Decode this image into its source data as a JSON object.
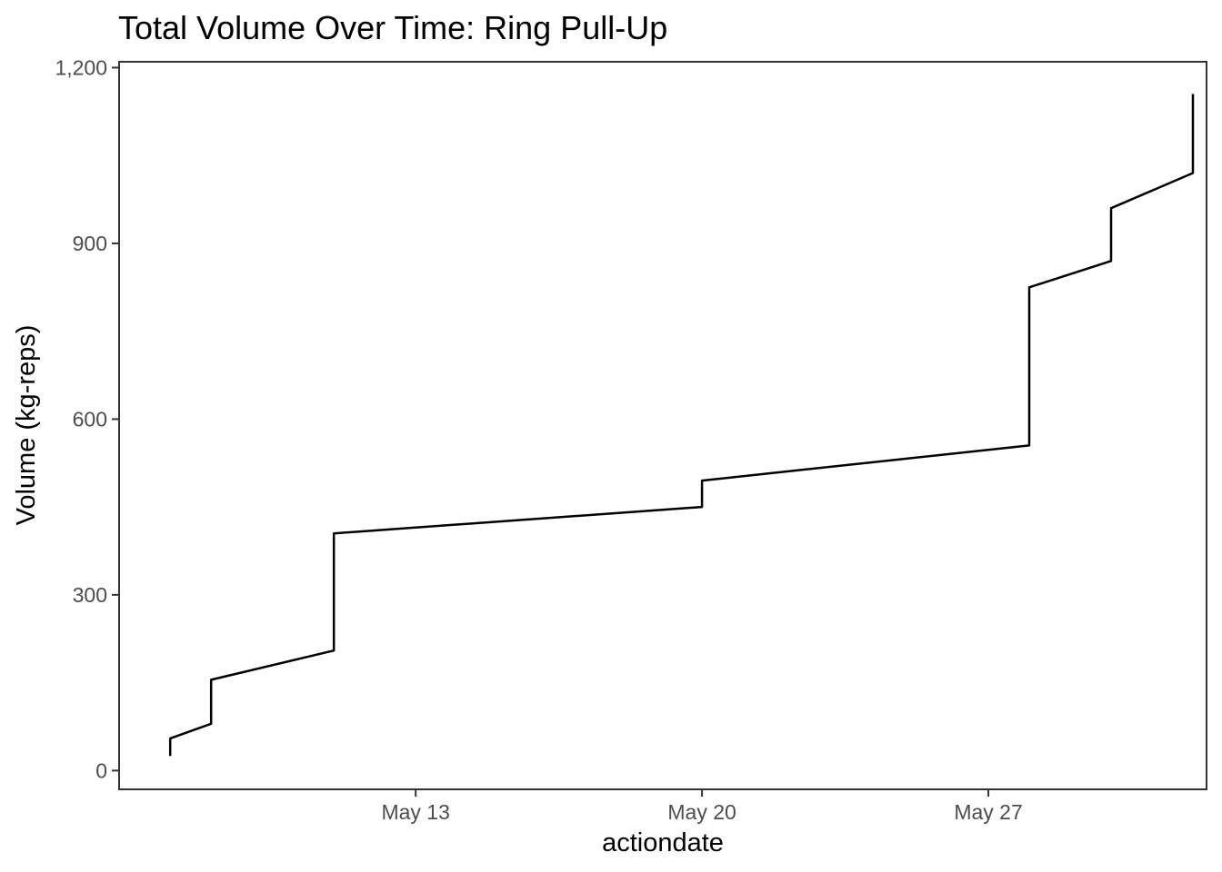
{
  "chart_data": {
    "type": "line",
    "title": "Total Volume Over Time: Ring Pull-Up",
    "xlabel": "actiondate",
    "ylabel": "Volume (kg-reps)",
    "x_tick_labels": [
      "May 13",
      "May 20",
      "May 27"
    ],
    "y_tick_labels": [
      "0",
      "300",
      "600",
      "900",
      "1,200"
    ],
    "y_ticks": [
      0,
      300,
      600,
      900,
      1200
    ],
    "ylim": [
      -32,
      1210
    ],
    "xlim": [
      "2025-05-05T18:00",
      "2025-06-01T08:00"
    ],
    "x_ticks": [
      "2025-05-13",
      "2025-05-20",
      "2025-05-27"
    ],
    "grid": false,
    "line_color": "#000000",
    "series": [
      {
        "points": [
          {
            "x": "2025-05-07",
            "y": 25
          },
          {
            "x": "2025-05-07",
            "y": 55
          },
          {
            "x": "2025-05-08",
            "y": 80
          },
          {
            "x": "2025-05-08",
            "y": 155
          },
          {
            "x": "2025-05-11",
            "y": 205
          },
          {
            "x": "2025-05-11",
            "y": 405
          },
          {
            "x": "2025-05-20",
            "y": 450
          },
          {
            "x": "2025-05-20",
            "y": 495
          },
          {
            "x": "2025-05-28",
            "y": 555
          },
          {
            "x": "2025-05-28",
            "y": 825
          },
          {
            "x": "2025-05-30",
            "y": 870
          },
          {
            "x": "2025-05-30",
            "y": 960
          },
          {
            "x": "2025-06-01",
            "y": 1020
          },
          {
            "x": "2025-06-01",
            "y": 1155
          }
        ]
      }
    ]
  }
}
